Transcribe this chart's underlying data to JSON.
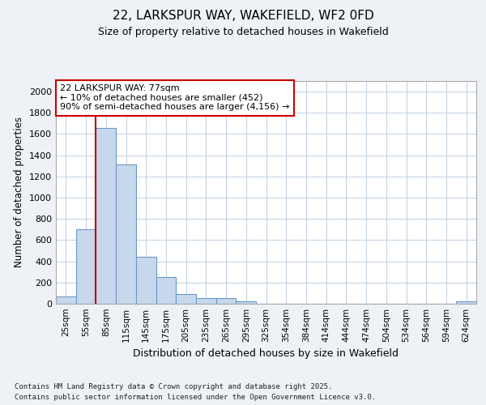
{
  "title1": "22, LARKSPUR WAY, WAKEFIELD, WF2 0FD",
  "title2": "Size of property relative to detached houses in Wakefield",
  "xlabel": "Distribution of detached houses by size in Wakefield",
  "ylabel": "Number of detached properties",
  "categories": [
    "25sqm",
    "55sqm",
    "85sqm",
    "115sqm",
    "145sqm",
    "175sqm",
    "205sqm",
    "235sqm",
    "265sqm",
    "295sqm",
    "325sqm",
    "354sqm",
    "384sqm",
    "414sqm",
    "444sqm",
    "474sqm",
    "504sqm",
    "534sqm",
    "564sqm",
    "594sqm",
    "624sqm"
  ],
  "values": [
    65,
    700,
    1660,
    1310,
    440,
    255,
    90,
    50,
    50,
    25,
    0,
    0,
    0,
    0,
    0,
    0,
    0,
    0,
    0,
    0,
    20
  ],
  "bar_color": "#c8d8ec",
  "bar_edge_color": "#6899c8",
  "vline_color": "#bb0000",
  "annotation_title": "22 LARKSPUR WAY: 77sqm",
  "annotation_line1": "← 10% of detached houses are smaller (452)",
  "annotation_line2": "90% of semi-detached houses are larger (4,156) →",
  "annotation_box_color": "#ffffff",
  "annotation_box_edge": "#cc0000",
  "ylim": [
    0,
    2100
  ],
  "yticks": [
    0,
    200,
    400,
    600,
    800,
    1000,
    1200,
    1400,
    1600,
    1800,
    2000
  ],
  "footnote1": "Contains HM Land Registry data © Crown copyright and database right 2025.",
  "footnote2": "Contains public sector information licensed under the Open Government Licence v3.0.",
  "background_color": "#eef2f7",
  "plot_bg_color": "#ffffff",
  "grid_color": "#c0d0e0"
}
